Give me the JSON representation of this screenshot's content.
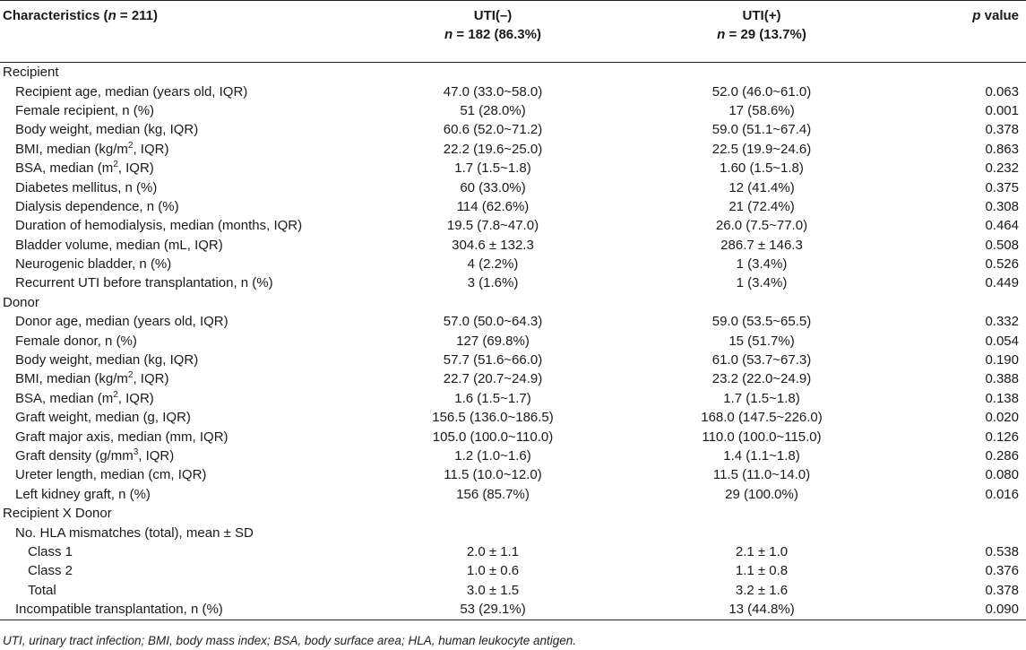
{
  "header": {
    "col1_pre": "Characteristics (",
    "col1_n": "n",
    "col1_post": " = 211)",
    "col2_top": "UTI(–)",
    "col2_n": "n",
    "col2_bottom": " = 182 (86.3%)",
    "col3_top": "UTI(+)",
    "col3_n": "n",
    "col3_bottom": " = 29 (13.7%)",
    "col4_p": "p",
    "col4_rest": " value"
  },
  "rows": [
    {
      "level": 0,
      "label": "Recipient",
      "v1": "",
      "v2": "",
      "p": ""
    },
    {
      "level": 1,
      "label": "Recipient age, median (years old, IQR)",
      "v1": "47.0 (33.0~58.0)",
      "v2": "52.0 (46.0~61.0)",
      "p": "0.063"
    },
    {
      "level": 1,
      "label": "Female recipient, n (%)",
      "v1": "51 (28.0%)",
      "v2": "17 (58.6%)",
      "p": "0.001"
    },
    {
      "level": 1,
      "label": "Body weight, median (kg, IQR)",
      "v1": "60.6 (52.0~71.2)",
      "v2": "59.0 (51.1~67.4)",
      "p": "0.378"
    },
    {
      "level": 1,
      "label": "BMI, median (kg/m",
      "sup": "2",
      "label_post": ", IQR)",
      "v1": "22.2 (19.6~25.0)",
      "v2": "22.5 (19.9~24.6)",
      "p": "0.863"
    },
    {
      "level": 1,
      "label": "BSA, median (m",
      "sup": "2",
      "label_post": ", IQR)",
      "v1": "1.7 (1.5~1.8)",
      "v2": "1.60 (1.5~1.8)",
      "p": "0.232"
    },
    {
      "level": 1,
      "label": "Diabetes mellitus, n (%)",
      "v1": "60 (33.0%)",
      "v2": "12 (41.4%)",
      "p": "0.375"
    },
    {
      "level": 1,
      "label": "Dialysis dependence, n (%)",
      "v1": "114 (62.6%)",
      "v2": "21 (72.4%)",
      "p": "0.308"
    },
    {
      "level": 1,
      "label": "Duration of hemodialysis, median (months, IQR)",
      "v1": "19.5 (7.8~47.0)",
      "v2": "26.0 (7.5~77.0)",
      "p": "0.464"
    },
    {
      "level": 1,
      "label": "Bladder volume, median (mL, IQR)",
      "v1": "304.6 ± 132.3",
      "v2": "286.7 ± 146.3",
      "p": "0.508"
    },
    {
      "level": 1,
      "label": "Neurogenic bladder, n (%)",
      "v1": "4 (2.2%)",
      "v2": "1 (3.4%)",
      "p": "0.526"
    },
    {
      "level": 1,
      "label": "Recurrent UTI before transplantation, n (%)",
      "v1": "3 (1.6%)",
      "v2": "1 (3.4%)",
      "p": "0.449"
    },
    {
      "level": 0,
      "label": "Donor",
      "v1": "",
      "v2": "",
      "p": ""
    },
    {
      "level": 1,
      "label": "Donor age, median (years old, IQR)",
      "v1": "57.0 (50.0~64.3)",
      "v2": "59.0 (53.5~65.5)",
      "p": "0.332"
    },
    {
      "level": 1,
      "label": "Female donor, n (%)",
      "v1": "127 (69.8%)",
      "v2": "15 (51.7%)",
      "p": "0.054"
    },
    {
      "level": 1,
      "label": "Body weight, median (kg, IQR)",
      "v1": "57.7 (51.6~66.0)",
      "v2": "61.0 (53.7~67.3)",
      "p": "0.190"
    },
    {
      "level": 1,
      "label": "BMI, median (kg/m",
      "sup": "2",
      "label_post": ", IQR)",
      "v1": "22.7 (20.7~24.9)",
      "v2": "23.2 (22.0~24.9)",
      "p": "0.388"
    },
    {
      "level": 1,
      "label": "BSA, median (m",
      "sup": "2",
      "label_post": ", IQR)",
      "v1": "1.6 (1.5~1.7)",
      "v2": "1.7 (1.5~1.8)",
      "p": "0.138"
    },
    {
      "level": 1,
      "label": "Graft weight, median (g, IQR)",
      "v1": "156.5 (136.0~186.5)",
      "v2": "168.0 (147.5~226.0)",
      "p": "0.020"
    },
    {
      "level": 1,
      "label": "Graft major axis, median (mm, IQR)",
      "v1": "105.0 (100.0~110.0)",
      "v2": "110.0 (100.0~115.0)",
      "p": "0.126"
    },
    {
      "level": 1,
      "label": "Graft density (g/mm",
      "sup": "3",
      "label_post": ", IQR)",
      "v1": "1.2 (1.0~1.6)",
      "v2": "1.4 (1.1~1.8)",
      "p": "0.286"
    },
    {
      "level": 1,
      "label": "Ureter length, median (cm, IQR)",
      "v1": "11.5 (10.0~12.0)",
      "v2": "11.5 (11.0~14.0)",
      "p": "0.080"
    },
    {
      "level": 1,
      "label": "Left kidney graft, n (%)",
      "v1": "156 (85.7%)",
      "v2": "29 (100.0%)",
      "p": "0.016"
    },
    {
      "level": 0,
      "label": "Recipient X Donor",
      "v1": "",
      "v2": "",
      "p": ""
    },
    {
      "level": 1,
      "label": "No. HLA mismatches (total), mean ± SD",
      "v1": "",
      "v2": "",
      "p": ""
    },
    {
      "level": 2,
      "label": "Class 1",
      "v1": "2.0 ± 1.1",
      "v2": "2.1 ± 1.0",
      "p": "0.538"
    },
    {
      "level": 2,
      "label": "Class 2",
      "v1": "1.0 ± 0.6",
      "v2": "1.1 ± 0.8",
      "p": "0.376"
    },
    {
      "level": 2,
      "label": "Total",
      "v1": "3.0 ± 1.5",
      "v2": "3.2 ± 1.6",
      "p": "0.378"
    },
    {
      "level": 1,
      "label": "Incompatible transplantation, n (%)",
      "v1": "53 (29.1%)",
      "v2": "13 (44.8%)",
      "p": "0.090"
    }
  ],
  "footnote": "UTI, urinary tract infection; BMI, body mass index; BSA, body surface area; HLA, human leukocyte antigen."
}
